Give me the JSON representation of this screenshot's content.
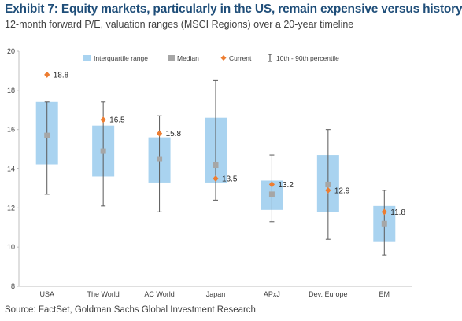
{
  "header": {
    "title": "Exhibit 7: Equity markets, particularly in the US, remain expensive versus history",
    "subtitle": "12-month forward P/E, valuation ranges (MSCI Regions) over a 20-year timeline"
  },
  "footer": {
    "source": "Source: FactSet, Goldman Sachs Global Investment Research"
  },
  "chart_data": {
    "type": "box",
    "categories": [
      "USA",
      "The World",
      "AC World",
      "Japan",
      "APxJ",
      "Dev. Europe",
      "EM"
    ],
    "ylim": [
      8,
      20
    ],
    "yticks": [
      8,
      10,
      12,
      14,
      16,
      18,
      20
    ],
    "series": [
      {
        "name": "Interquartile range",
        "q1": [
          14.2,
          13.6,
          13.3,
          13.3,
          11.9,
          11.8,
          10.3
        ],
        "q3": [
          17.4,
          16.2,
          15.6,
          16.6,
          13.4,
          14.7,
          12.1
        ]
      },
      {
        "name": "Median",
        "values": [
          15.7,
          14.9,
          14.5,
          14.2,
          12.7,
          13.2,
          11.2
        ]
      },
      {
        "name": "Current",
        "values": [
          18.8,
          16.5,
          15.8,
          13.5,
          13.2,
          12.9,
          11.8
        ]
      },
      {
        "name": "10th - 90th percentile",
        "low": [
          12.7,
          12.1,
          11.8,
          12.4,
          11.3,
          10.4,
          9.6
        ],
        "high": [
          17.4,
          17.4,
          16.7,
          18.5,
          14.7,
          16.0,
          12.9
        ]
      }
    ],
    "data_labels": [
      "18.8",
      "16.5",
      "15.8",
      "13.5",
      "13.2",
      "12.9",
      "11.8"
    ],
    "legend_position": "top",
    "colors": {
      "box": "#a9d3f0",
      "median": "#a6a6a6",
      "current": "#ed7d31",
      "whisker": "#595959",
      "axis": "#bfbfbf"
    }
  }
}
